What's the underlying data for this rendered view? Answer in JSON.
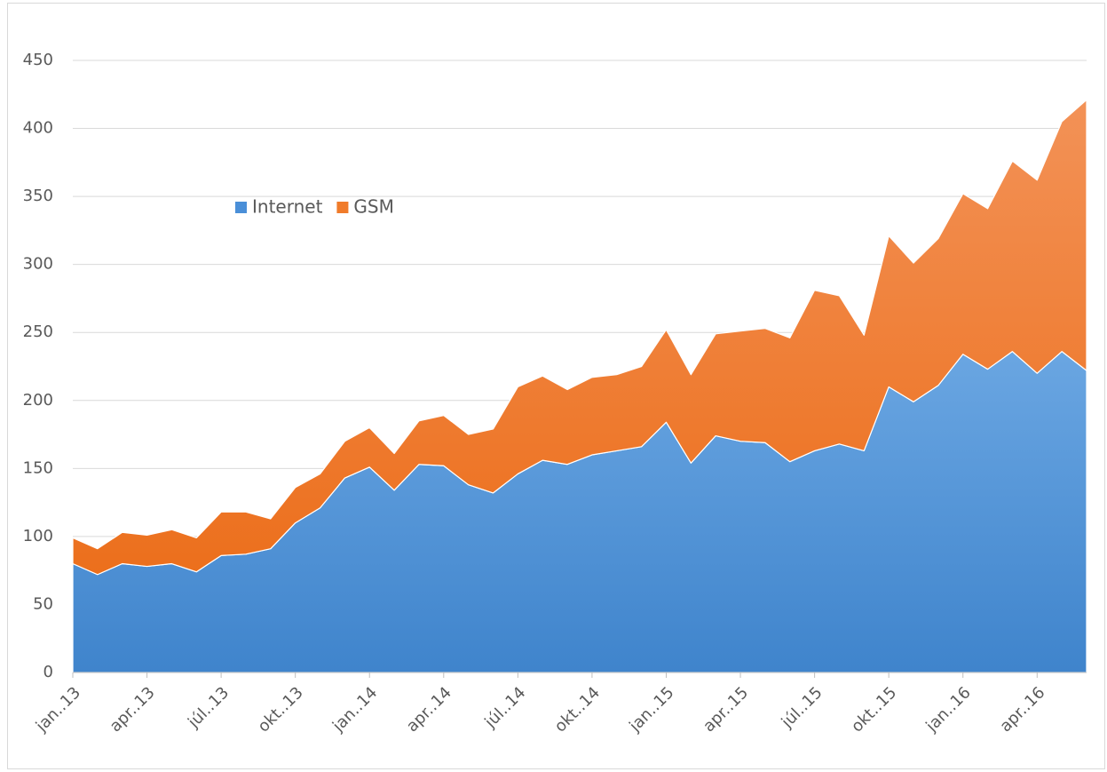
{
  "chart_data": {
    "type": "stacked_area",
    "categories": [
      "jan..13",
      null,
      null,
      "apr..13",
      null,
      null,
      "júl..13",
      null,
      null,
      "okt..13",
      null,
      null,
      "jan..14",
      null,
      null,
      "apr..14",
      null,
      null,
      "júl..14",
      null,
      null,
      "okt..14",
      null,
      null,
      "jan..15",
      null,
      null,
      "apr..15",
      null,
      null,
      "júl..15",
      null,
      null,
      "okt..15",
      null,
      null,
      "jan..16",
      null,
      null,
      "apr..16",
      null,
      null
    ],
    "series": [
      {
        "name": "Internet",
        "color": "#4a8fd8",
        "values": [
          80,
          72,
          80,
          78,
          80,
          74,
          86,
          87,
          91,
          110,
          121,
          143,
          151,
          134,
          153,
          152,
          138,
          132,
          146,
          156,
          153,
          160,
          163,
          166,
          184,
          154,
          174,
          170,
          169,
          155,
          163,
          168,
          163,
          210,
          199,
          211,
          234,
          223,
          236,
          220,
          236,
          222
        ]
      },
      {
        "name": "GSM",
        "color": "#f07b2a",
        "values": [
          19,
          19,
          23,
          23,
          25,
          25,
          32,
          31,
          22,
          26,
          25,
          27,
          29,
          27,
          32,
          37,
          37,
          47,
          64,
          62,
          55,
          57,
          56,
          59,
          68,
          65,
          75,
          81,
          84,
          91,
          118,
          109,
          85,
          111,
          102,
          108,
          118,
          118,
          140,
          142,
          169,
          199
        ]
      }
    ],
    "ylim": [
      0,
      450
    ],
    "yticks": [
      0,
      50,
      100,
      150,
      200,
      250,
      300,
      350,
      400,
      450
    ],
    "grid": true,
    "legend": "top-left"
  }
}
